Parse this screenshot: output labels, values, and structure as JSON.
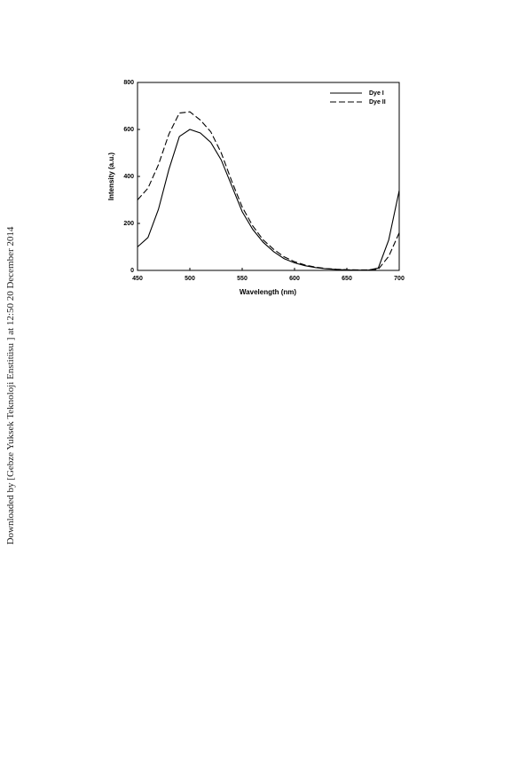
{
  "sidebar": "Downloaded by [Gebze Yuksek Teknoloji Enstitüsu ] at 12:50 20 December 2014",
  "chart_data": {
    "type": "line",
    "x_label": "Wavelength (nm)",
    "y_label": "Intensity (a.u.)",
    "x": [
      450,
      460,
      470,
      480,
      490,
      500,
      510,
      520,
      530,
      540,
      550,
      560,
      570,
      580,
      590,
      600,
      610,
      620,
      630,
      640,
      650,
      660,
      670,
      680,
      690,
      700
    ],
    "series": [
      {
        "name": "Dye I",
        "color": "#000000",
        "style": "solid",
        "values": [
          100,
          140,
          260,
          430,
          570,
          600,
          585,
          545,
          470,
          360,
          250,
          175,
          120,
          80,
          50,
          32,
          20,
          12,
          7,
          4,
          2,
          1,
          1,
          10,
          130,
          340
        ]
      },
      {
        "name": "Dye II",
        "color": "#000000",
        "style": "dashed",
        "values": [
          300,
          350,
          450,
          580,
          670,
          675,
          640,
          590,
          500,
          380,
          270,
          190,
          130,
          90,
          58,
          37,
          23,
          14,
          8,
          5,
          3,
          2,
          2,
          5,
          60,
          160
        ]
      }
    ],
    "xlim": [
      450,
      700
    ],
    "xticks": [
      450,
      500,
      550,
      600,
      650,
      700
    ],
    "ylim": [
      0,
      800
    ],
    "yticks": [
      0,
      200,
      400,
      600,
      800
    ],
    "legend": "upper right"
  }
}
